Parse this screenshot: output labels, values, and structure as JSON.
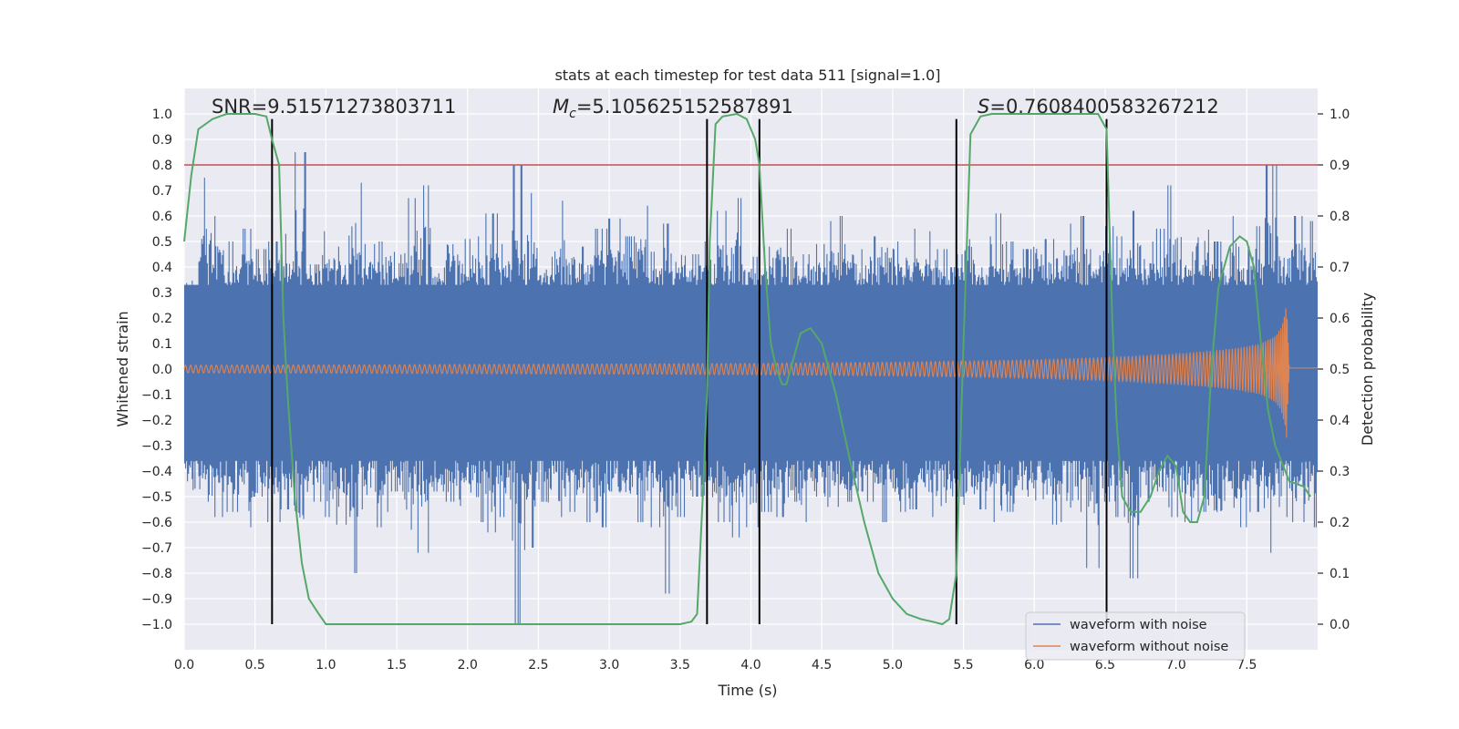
{
  "chart_data": {
    "type": "line",
    "title": "stats at each timestep for test data 511 [signal=1.0]",
    "xlabel": "Time (s)",
    "ylabel": "Whitened strain",
    "y2label": "Detection probability",
    "xlim": [
      0.0,
      8.0
    ],
    "ylim": [
      -1.1,
      1.1
    ],
    "y2lim": [
      -0.05,
      1.05
    ],
    "xticks": [
      "0.0",
      "0.5",
      "1.0",
      "1.5",
      "2.0",
      "2.5",
      "3.0",
      "3.5",
      "4.0",
      "4.5",
      "5.0",
      "5.5",
      "6.0",
      "6.5",
      "7.0",
      "7.5"
    ],
    "xtick_values": [
      0,
      0.5,
      1,
      1.5,
      2,
      2.5,
      3,
      3.5,
      4,
      4.5,
      5,
      5.5,
      6,
      6.5,
      7,
      7.5
    ],
    "yticks": [
      "1.0",
      "0.9",
      "0.8",
      "0.7",
      "0.6",
      "0.5",
      "0.4",
      "0.3",
      "0.2",
      "0.1",
      "0.0",
      "−0.1",
      "−0.2",
      "−0.3",
      "−0.4",
      "−0.5",
      "−0.6",
      "−0.7",
      "−0.8",
      "−0.9",
      "−1.0"
    ],
    "ytick_values": [
      1,
      0.9,
      0.8,
      0.7,
      0.6,
      0.5,
      0.4,
      0.3,
      0.2,
      0.1,
      0,
      -0.1,
      -0.2,
      -0.3,
      -0.4,
      -0.5,
      -0.6,
      -0.7,
      -0.8,
      -0.9,
      -1.0
    ],
    "y2ticks": [
      "1.0",
      "0.9",
      "0.8",
      "0.7",
      "0.6",
      "0.5",
      "0.4",
      "0.3",
      "0.2",
      "0.1",
      "0.0"
    ],
    "y2tick_values": [
      1,
      0.9,
      0.8,
      0.7,
      0.6,
      0.5,
      0.4,
      0.3,
      0.2,
      0.1,
      0
    ],
    "threshold": 0.9,
    "vlines": [
      0.62,
      3.69,
      4.06,
      5.45,
      6.51
    ],
    "annotations": {
      "snr_label": "SNR=9.51571273803711",
      "mc_prefix": "M",
      "mc_sub": "c",
      "mc_value": "=5.105625152587891",
      "s_prefix": "S",
      "s_value": "=0.7608400583267212"
    },
    "legend": {
      "noise": "waveform with noise",
      "clean": "waveform without noise"
    },
    "noise_envelope": {
      "upper": [
        0.26,
        0.75,
        0.6,
        0.5,
        0.55,
        0.47,
        0.5,
        0.53,
        0.85,
        0.41,
        0.54,
        0.48,
        0.73,
        0.49,
        0.5,
        0.55,
        0.67,
        0.72,
        0.4,
        0.63,
        0.51,
        0.52,
        0.61,
        0.49,
        0.8,
        0.69,
        0.44,
        0.66,
        0.51,
        0.48,
        0.55,
        0.59,
        0.52,
        0.64,
        0.46,
        0.57,
        0.6,
        0.45,
        0.5,
        0.62,
        0.67,
        0.44,
        0.48,
        0.59,
        0.55,
        0.45,
        0.49,
        0.58,
        0.6,
        0.47,
        0.52,
        0.62,
        0.5,
        0.55,
        0.54,
        0.47,
        0.45,
        0.62,
        0.52,
        0.61,
        0.5,
        0.47,
        0.58,
        0.51,
        0.57,
        0.6,
        0.47,
        0.56,
        0.52,
        0.62,
        0.5,
        0.55,
        0.72,
        0.46,
        0.7,
        0.5,
        0.6,
        0.48,
        0.56,
        0.8,
        0.52,
        0.6,
        0.58
      ],
      "lower": [
        -0.44,
        -0.52,
        -0.58,
        -0.56,
        -0.62,
        -0.5,
        -0.6,
        -0.55,
        -0.74,
        -0.52,
        -0.58,
        -0.61,
        -0.8,
        -0.55,
        -0.62,
        -0.48,
        -0.63,
        -0.72,
        -0.48,
        -0.52,
        -0.56,
        -0.6,
        -0.64,
        -0.58,
        -1.0,
        -0.7,
        -0.52,
        -0.58,
        -0.56,
        -0.6,
        -0.62,
        -0.48,
        -0.55,
        -0.6,
        -0.62,
        -0.88,
        -0.58,
        -0.5,
        -0.56,
        -0.6,
        -0.66,
        -0.62,
        -0.56,
        -0.58,
        -0.52,
        -0.6,
        -0.5,
        -0.54,
        -0.52,
        -0.48,
        -0.52,
        -0.6,
        -0.56,
        -0.55,
        -0.58,
        -0.62,
        -0.5,
        -0.62,
        -0.55,
        -0.6,
        -0.56,
        -0.5,
        -0.58,
        -0.61,
        -0.6,
        -0.56,
        -0.78,
        -0.52,
        -0.58,
        -0.82,
        -0.52,
        -0.48,
        -0.58,
        -0.6,
        -0.56,
        -0.75,
        -0.6,
        -0.62,
        -0.56,
        -0.72,
        -0.58,
        -0.6,
        -0.62
      ]
    },
    "clean_waveform": {
      "x": [
        0.0,
        1.0,
        2.0,
        3.0,
        4.0,
        5.0,
        5.5,
        6.0,
        6.5,
        6.8,
        7.0,
        7.2,
        7.4,
        7.5,
        7.6,
        7.7,
        7.74,
        7.76,
        7.78,
        7.8,
        8.0
      ],
      "envelope": [
        0.015,
        0.016,
        0.018,
        0.02,
        0.022,
        0.027,
        0.031,
        0.036,
        0.045,
        0.053,
        0.06,
        0.068,
        0.08,
        0.088,
        0.1,
        0.13,
        0.16,
        0.2,
        0.27,
        0.005,
        0.005
      ]
    },
    "detection_probability": {
      "x": [
        0.0,
        0.05,
        0.1,
        0.2,
        0.3,
        0.5,
        0.58,
        0.62,
        0.67,
        0.7,
        0.73,
        0.78,
        0.83,
        0.88,
        0.95,
        1.0,
        1.5,
        2.0,
        2.5,
        3.0,
        3.5,
        3.58,
        3.62,
        3.66,
        3.69,
        3.71,
        3.75,
        3.8,
        3.9,
        3.97,
        4.03,
        4.06,
        4.1,
        4.14,
        4.18,
        4.22,
        4.25,
        4.3,
        4.35,
        4.42,
        4.5,
        4.6,
        4.7,
        4.8,
        4.9,
        5.0,
        5.1,
        5.2,
        5.28,
        5.35,
        5.4,
        5.45,
        5.5,
        5.55,
        5.62,
        5.7,
        6.0,
        6.45,
        6.51,
        6.55,
        6.58,
        6.62,
        6.68,
        6.75,
        6.82,
        6.88,
        6.94,
        7.0,
        7.05,
        7.1,
        7.15,
        7.2,
        7.25,
        7.3,
        7.38,
        7.45,
        7.5,
        7.55,
        7.6,
        7.65,
        7.7,
        7.8,
        7.9,
        7.95
      ],
      "y": [
        0.75,
        0.88,
        0.97,
        0.99,
        1.0,
        1.0,
        0.995,
        0.95,
        0.9,
        0.6,
        0.45,
        0.25,
        0.12,
        0.05,
        0.02,
        0.0,
        0.0,
        0.0,
        0.0,
        0.0,
        0.0,
        0.005,
        0.02,
        0.25,
        0.45,
        0.75,
        0.98,
        0.995,
        1.0,
        0.99,
        0.95,
        0.9,
        0.7,
        0.55,
        0.5,
        0.47,
        0.47,
        0.52,
        0.57,
        0.58,
        0.55,
        0.45,
        0.32,
        0.2,
        0.1,
        0.05,
        0.02,
        0.01,
        0.005,
        0.0,
        0.01,
        0.1,
        0.55,
        0.96,
        0.995,
        1.0,
        1.0,
        1.0,
        0.97,
        0.6,
        0.4,
        0.25,
        0.22,
        0.22,
        0.25,
        0.3,
        0.33,
        0.31,
        0.22,
        0.2,
        0.2,
        0.25,
        0.5,
        0.66,
        0.74,
        0.76,
        0.75,
        0.7,
        0.55,
        0.42,
        0.35,
        0.28,
        0.27,
        0.25
      ]
    }
  }
}
